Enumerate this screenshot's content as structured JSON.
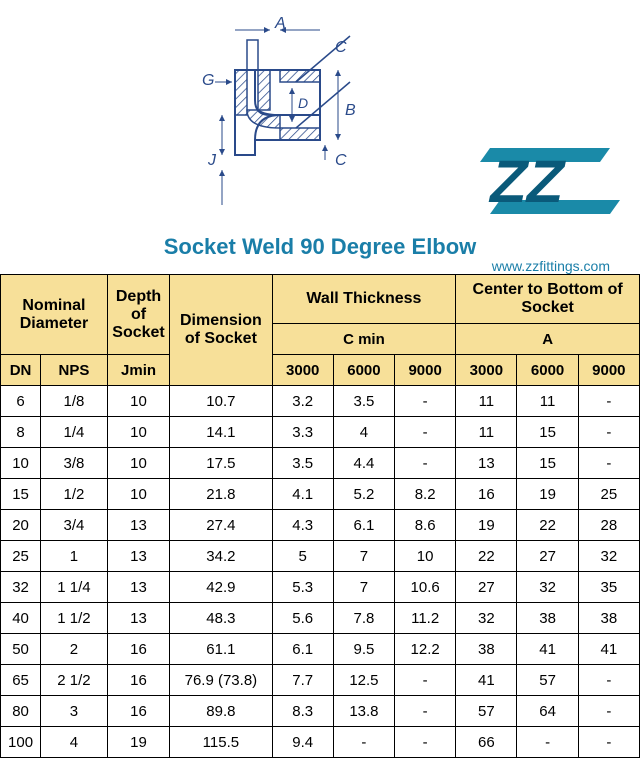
{
  "diagram": {
    "labels": {
      "A": "A",
      "B": "B",
      "C": "C",
      "D": "D",
      "G": "G",
      "J": "J"
    },
    "stroke": "#2a4a8a",
    "hatch": "#2a4a8a"
  },
  "logo": {
    "text": "ZZ",
    "bar_color": "#1a8aa8",
    "text_color": "#0a5a7a"
  },
  "title": "Socket Weld 90 Degree Elbow",
  "url": "www.zzfittings.com",
  "table": {
    "header_bg": "#f7e099",
    "border": "#000000",
    "top_headers": {
      "nominal": "Nominal Diameter",
      "depth": "Depth of Socket",
      "dimension": "Dimension of Socket",
      "wall": "Wall Thickness",
      "center": "Center to Bottom of Socket"
    },
    "sub_headers": {
      "cmin": "C min",
      "a": "A"
    },
    "col_headers": {
      "dn": "DN",
      "nps": "NPS",
      "jmin": "Jmin",
      "c3000": "3000",
      "c6000": "6000",
      "c9000": "9000",
      "a3000": "3000",
      "a6000": "6000",
      "a9000": "9000"
    },
    "rows": [
      {
        "dn": "6",
        "nps": "1/8",
        "jmin": "10",
        "dim": "10.7",
        "c3000": "3.2",
        "c6000": "3.5",
        "c9000": "-",
        "a3000": "11",
        "a6000": "11",
        "a9000": "-"
      },
      {
        "dn": "8",
        "nps": "1/4",
        "jmin": "10",
        "dim": "14.1",
        "c3000": "3.3",
        "c6000": "4",
        "c9000": "-",
        "a3000": "11",
        "a6000": "15",
        "a9000": "-"
      },
      {
        "dn": "10",
        "nps": "3/8",
        "jmin": "10",
        "dim": "17.5",
        "c3000": "3.5",
        "c6000": "4.4",
        "c9000": "-",
        "a3000": "13",
        "a6000": "15",
        "a9000": "-"
      },
      {
        "dn": "15",
        "nps": "1/2",
        "jmin": "10",
        "dim": "21.8",
        "c3000": "4.1",
        "c6000": "5.2",
        "c9000": "8.2",
        "a3000": "16",
        "a6000": "19",
        "a9000": "25"
      },
      {
        "dn": "20",
        "nps": "3/4",
        "jmin": "13",
        "dim": "27.4",
        "c3000": "4.3",
        "c6000": "6.1",
        "c9000": "8.6",
        "a3000": "19",
        "a6000": "22",
        "a9000": "28"
      },
      {
        "dn": "25",
        "nps": "1",
        "jmin": "13",
        "dim": "34.2",
        "c3000": "5",
        "c6000": "7",
        "c9000": "10",
        "a3000": "22",
        "a6000": "27",
        "a9000": "32"
      },
      {
        "dn": "32",
        "nps": "1 1/4",
        "jmin": "13",
        "dim": "42.9",
        "c3000": "5.3",
        "c6000": "7",
        "c9000": "10.6",
        "a3000": "27",
        "a6000": "32",
        "a9000": "35"
      },
      {
        "dn": "40",
        "nps": "1 1/2",
        "jmin": "13",
        "dim": "48.3",
        "c3000": "5.6",
        "c6000": "7.8",
        "c9000": "11.2",
        "a3000": "32",
        "a6000": "38",
        "a9000": "38"
      },
      {
        "dn": "50",
        "nps": "2",
        "jmin": "16",
        "dim": "61.1",
        "c3000": "6.1",
        "c6000": "9.5",
        "c9000": "12.2",
        "a3000": "38",
        "a6000": "41",
        "a9000": "41"
      },
      {
        "dn": "65",
        "nps": "2 1/2",
        "jmin": "16",
        "dim": "76.9 (73.8)",
        "c3000": "7.7",
        "c6000": "12.5",
        "c9000": "-",
        "a3000": "41",
        "a6000": "57",
        "a9000": "-"
      },
      {
        "dn": "80",
        "nps": "3",
        "jmin": "16",
        "dim": "89.8",
        "c3000": "8.3",
        "c6000": "13.8",
        "c9000": "-",
        "a3000": "57",
        "a6000": "64",
        "a9000": "-"
      },
      {
        "dn": "100",
        "nps": "4",
        "jmin": "19",
        "dim": "115.5",
        "c3000": "9.4",
        "c6000": "-",
        "c9000": "-",
        "a3000": "66",
        "a6000": "-",
        "a9000": "-"
      }
    ]
  }
}
